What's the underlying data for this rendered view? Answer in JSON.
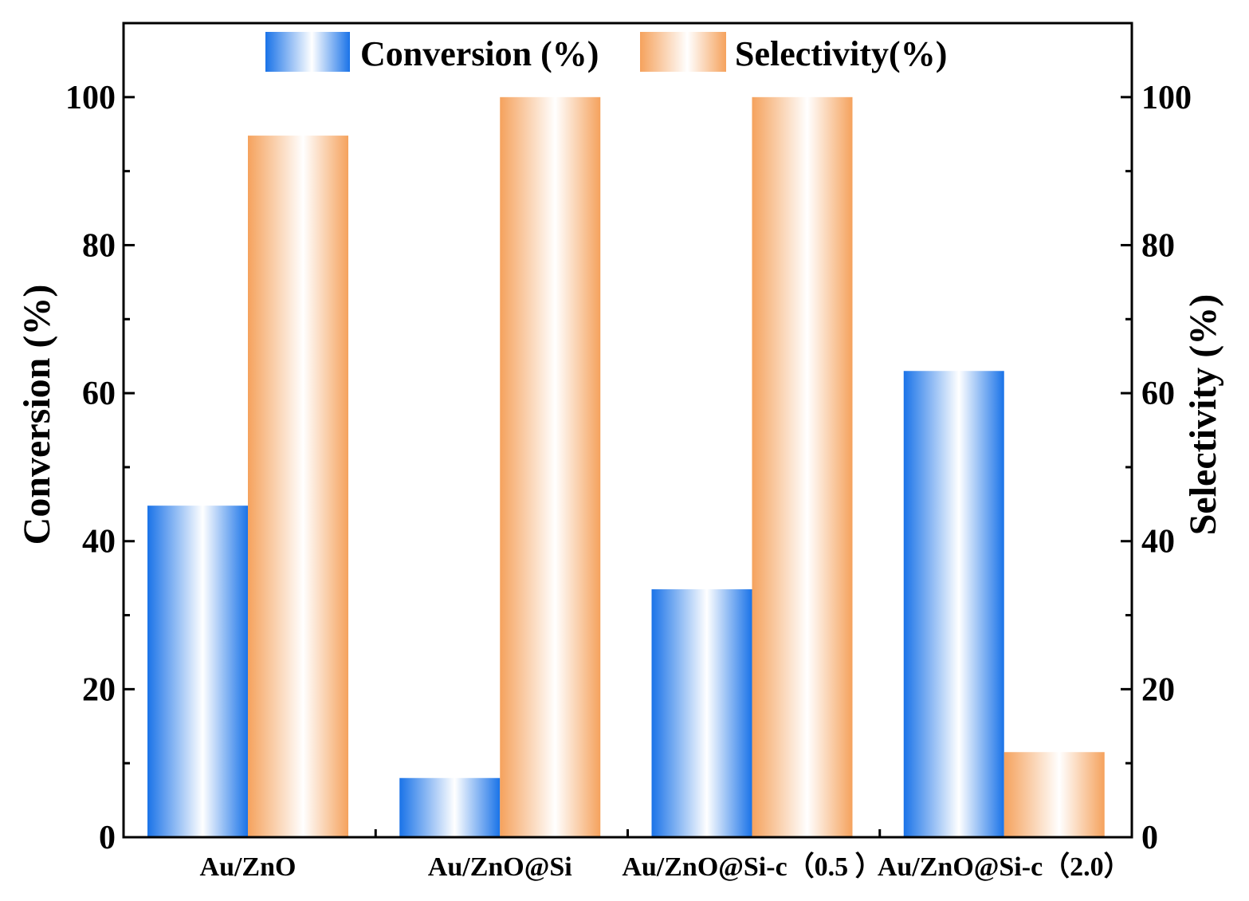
{
  "chart_data": {
    "type": "bar",
    "categories": [
      "Au/ZnO",
      "Au/ZnO@Si",
      "Au/ZnO@Si-c（0.5 ）",
      "Au/ZnO@Si-c（2.0）"
    ],
    "series": [
      {
        "name": "Conversion (%)",
        "axis": "left",
        "values": [
          44.8,
          8.0,
          33.5,
          63.0
        ]
      },
      {
        "name": "Selectivity(%)",
        "axis": "right",
        "values": [
          94.8,
          100,
          100,
          11.5
        ]
      }
    ],
    "ylabel": "Conversion (%)",
    "y2label": "Selectivity (%)",
    "ylim": [
      0,
      110
    ],
    "y2lim": [
      0,
      110
    ],
    "yticks": [
      0,
      20,
      40,
      60,
      80,
      100
    ],
    "y2ticks": [
      0,
      20,
      40,
      60,
      80,
      100
    ],
    "legend_position": "top-center",
    "grid": false
  },
  "colors": {
    "conversion": "#1a73e8",
    "selectivity": "#f5a25d"
  }
}
